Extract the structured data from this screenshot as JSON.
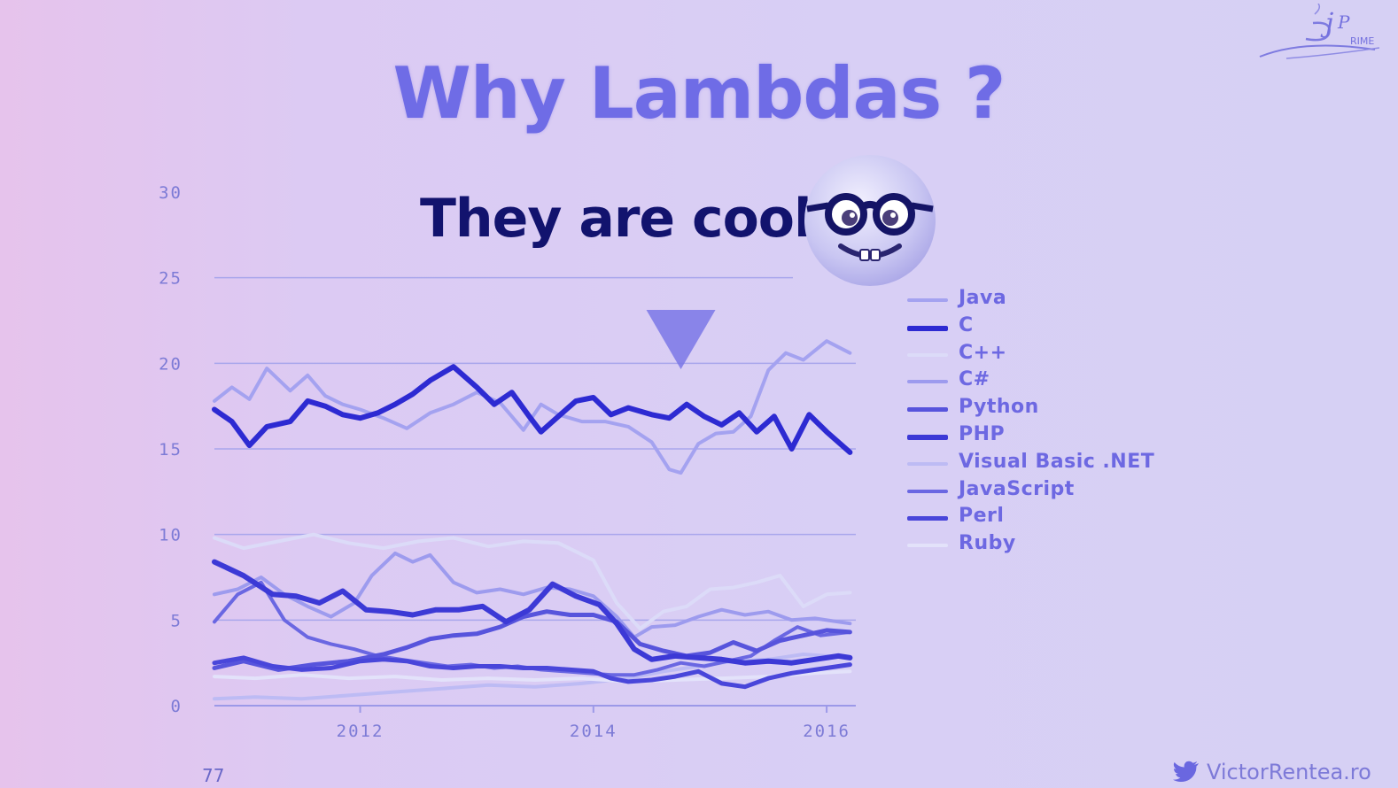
{
  "slide": {
    "title": "Why Lambdas ?",
    "subtitle": "They are cool",
    "page_number": "77",
    "credit": "VictorRentea.ro",
    "logo_icon": "j-prime-logo",
    "emoji_icon": "nerd-face-icon",
    "bird_icon": "twitter-bird-icon"
  },
  "chart_data": {
    "type": "line",
    "title": "",
    "xlabel": "",
    "ylabel": "",
    "x_range": [
      2010.75,
      2016.25
    ],
    "ylim": [
      0,
      30
    ],
    "y_ticks": [
      0,
      5,
      10,
      15,
      20,
      25,
      30
    ],
    "x_ticks": [
      2012,
      2014,
      2016
    ],
    "grid": true,
    "legend_position": "right",
    "marker": {
      "shape": "down-triangle",
      "x": 2014.75,
      "color": "#7a77e6"
    },
    "series": [
      {
        "name": "Java",
        "color": "#a4a2f0",
        "width": 4,
        "x": [
          2010.75,
          2010.9,
          2011.05,
          2011.2,
          2011.4,
          2011.55,
          2011.7,
          2011.85,
          2012.0,
          2012.2,
          2012.4,
          2012.6,
          2012.8,
          2013.0,
          2013.2,
          2013.4,
          2013.55,
          2013.7,
          2013.9,
          2014.1,
          2014.3,
          2014.5,
          2014.65,
          2014.75,
          2014.9,
          2015.05,
          2015.2,
          2015.35,
          2015.5,
          2015.65,
          2015.8,
          2016.0,
          2016.2
        ],
        "y": [
          17.8,
          18.6,
          17.9,
          19.7,
          18.4,
          19.3,
          18.1,
          17.6,
          17.3,
          16.8,
          16.2,
          17.1,
          17.6,
          18.3,
          17.7,
          16.1,
          17.6,
          17.0,
          16.6,
          16.6,
          16.3,
          15.4,
          13.8,
          13.6,
          15.3,
          15.9,
          16.0,
          16.9,
          19.6,
          20.6,
          20.2,
          21.3,
          20.6
        ]
      },
      {
        "name": "C",
        "color": "#2d2ad2",
        "width": 6,
        "x": [
          2010.75,
          2010.9,
          2011.05,
          2011.2,
          2011.4,
          2011.55,
          2011.7,
          2011.85,
          2012.0,
          2012.15,
          2012.3,
          2012.45,
          2012.6,
          2012.8,
          2013.0,
          2013.15,
          2013.3,
          2013.45,
          2013.55,
          2013.7,
          2013.85,
          2014.0,
          2014.15,
          2014.3,
          2014.5,
          2014.65,
          2014.8,
          2014.95,
          2015.1,
          2015.25,
          2015.4,
          2015.55,
          2015.7,
          2015.85,
          2016.0,
          2016.2
        ],
        "y": [
          17.3,
          16.6,
          15.2,
          16.3,
          16.6,
          17.8,
          17.5,
          17.0,
          16.8,
          17.1,
          17.6,
          18.2,
          19.0,
          19.8,
          18.6,
          17.6,
          18.3,
          16.9,
          16.0,
          16.9,
          17.8,
          18.0,
          17.0,
          17.4,
          17.0,
          16.8,
          17.6,
          16.9,
          16.4,
          17.1,
          16.0,
          16.9,
          15.0,
          17.0,
          16.0,
          14.8
        ]
      },
      {
        "name": "C++",
        "color": "#dcdbf8",
        "width": 4,
        "x": [
          2010.75,
          2011.0,
          2011.3,
          2011.6,
          2011.9,
          2012.2,
          2012.5,
          2012.8,
          2013.1,
          2013.4,
          2013.7,
          2014.0,
          2014.2,
          2014.4,
          2014.6,
          2014.8,
          2015.0,
          2015.2,
          2015.4,
          2015.6,
          2015.8,
          2016.0,
          2016.2
        ],
        "y": [
          9.8,
          9.2,
          9.6,
          10.0,
          9.5,
          9.2,
          9.6,
          9.8,
          9.3,
          9.6,
          9.5,
          8.5,
          6.0,
          4.5,
          5.5,
          5.8,
          6.8,
          6.9,
          7.2,
          7.6,
          5.8,
          6.5,
          6.6
        ]
      },
      {
        "name": "C#",
        "color": "#9d9bee",
        "width": 4,
        "x": [
          2010.75,
          2010.95,
          2011.15,
          2011.35,
          2011.55,
          2011.75,
          2011.95,
          2012.1,
          2012.3,
          2012.45,
          2012.6,
          2012.8,
          2013.0,
          2013.2,
          2013.4,
          2013.6,
          2013.8,
          2014.0,
          2014.2,
          2014.35,
          2014.5,
          2014.7,
          2014.9,
          2015.1,
          2015.3,
          2015.5,
          2015.7,
          2015.9,
          2016.1,
          2016.2
        ],
        "y": [
          6.5,
          6.8,
          7.5,
          6.5,
          5.8,
          5.2,
          6.0,
          7.6,
          8.9,
          8.4,
          8.8,
          7.2,
          6.6,
          6.8,
          6.5,
          6.9,
          6.8,
          6.4,
          5.2,
          4.0,
          4.6,
          4.7,
          5.2,
          5.6,
          5.3,
          5.5,
          5.0,
          5.1,
          4.9,
          4.8
        ]
      },
      {
        "name": "Python",
        "color": "#5754dc",
        "width": 5,
        "x": [
          2010.75,
          2011.0,
          2011.3,
          2011.6,
          2011.9,
          2012.2,
          2012.4,
          2012.6,
          2012.8,
          2013.0,
          2013.2,
          2013.4,
          2013.6,
          2013.8,
          2014.0,
          2014.2,
          2014.4,
          2014.6,
          2014.8,
          2015.0,
          2015.2,
          2015.4,
          2015.6,
          2015.8,
          2016.0,
          2016.2
        ],
        "y": [
          2.2,
          2.6,
          2.1,
          2.4,
          2.6,
          3.0,
          3.4,
          3.9,
          4.1,
          4.2,
          4.6,
          5.2,
          5.5,
          5.3,
          5.3,
          4.9,
          3.6,
          3.2,
          2.9,
          3.1,
          3.7,
          3.2,
          3.8,
          4.1,
          4.4,
          4.3
        ]
      },
      {
        "name": "PHP",
        "color": "#3c39d6",
        "width": 6,
        "x": [
          2010.75,
          2011.0,
          2011.25,
          2011.45,
          2011.65,
          2011.85,
          2012.05,
          2012.25,
          2012.45,
          2012.65,
          2012.85,
          2013.05,
          2013.25,
          2013.45,
          2013.65,
          2013.85,
          2014.05,
          2014.2,
          2014.35,
          2014.5,
          2014.7,
          2014.9,
          2015.1,
          2015.3,
          2015.5,
          2015.7,
          2015.9,
          2016.1,
          2016.2
        ],
        "y": [
          8.4,
          7.6,
          6.5,
          6.4,
          6.0,
          6.7,
          5.6,
          5.5,
          5.3,
          5.6,
          5.6,
          5.8,
          4.9,
          5.6,
          7.1,
          6.4,
          5.9,
          4.8,
          3.3,
          2.7,
          2.9,
          2.8,
          2.7,
          2.5,
          2.6,
          2.5,
          2.7,
          2.9,
          2.8
        ]
      },
      {
        "name": "Visual Basic .NET",
        "color": "#bdbbf4",
        "width": 4,
        "x": [
          2010.75,
          2011.1,
          2011.5,
          2011.9,
          2012.3,
          2012.7,
          2013.1,
          2013.5,
          2013.9,
          2014.3,
          2014.6,
          2014.9,
          2015.2,
          2015.5,
          2015.8,
          2016.2
        ],
        "y": [
          0.4,
          0.5,
          0.4,
          0.6,
          0.8,
          1.0,
          1.2,
          1.1,
          1.3,
          1.6,
          2.0,
          2.3,
          2.6,
          2.7,
          3.0,
          2.8
        ]
      },
      {
        "name": "JavaScript",
        "color": "#6a67e2",
        "width": 4,
        "x": [
          2010.75,
          2010.95,
          2011.15,
          2011.35,
          2011.55,
          2011.75,
          2011.95,
          2012.15,
          2012.35,
          2012.55,
          2012.75,
          2012.95,
          2013.15,
          2013.35,
          2013.55,
          2013.75,
          2013.95,
          2014.15,
          2014.35,
          2014.55,
          2014.75,
          2014.95,
          2015.15,
          2015.35,
          2015.55,
          2015.75,
          2015.95,
          2016.2
        ],
        "y": [
          4.9,
          6.5,
          7.2,
          5.0,
          4.0,
          3.6,
          3.3,
          2.9,
          2.7,
          2.5,
          2.3,
          2.4,
          2.2,
          2.3,
          2.1,
          2.0,
          1.9,
          1.8,
          1.8,
          2.1,
          2.5,
          2.3,
          2.6,
          2.9,
          3.8,
          4.6,
          4.1,
          4.3
        ]
      },
      {
        "name": "Perl",
        "color": "#4946da",
        "width": 5,
        "x": [
          2010.75,
          2011.0,
          2011.25,
          2011.5,
          2011.75,
          2012.0,
          2012.2,
          2012.4,
          2012.6,
          2012.8,
          2013.0,
          2013.2,
          2013.4,
          2013.6,
          2013.8,
          2014.0,
          2014.15,
          2014.3,
          2014.5,
          2014.7,
          2014.9,
          2015.1,
          2015.3,
          2015.5,
          2015.7,
          2015.9,
          2016.2
        ],
        "y": [
          2.5,
          2.8,
          2.3,
          2.1,
          2.2,
          2.6,
          2.7,
          2.6,
          2.3,
          2.2,
          2.3,
          2.3,
          2.2,
          2.2,
          2.1,
          2.0,
          1.6,
          1.4,
          1.5,
          1.7,
          2.0,
          1.3,
          1.1,
          1.6,
          1.9,
          2.1,
          2.4
        ]
      },
      {
        "name": "Ruby",
        "color": "#e3e2fa",
        "width": 4,
        "x": [
          2010.75,
          2011.1,
          2011.5,
          2011.9,
          2012.3,
          2012.7,
          2013.1,
          2013.5,
          2013.9,
          2014.3,
          2014.7,
          2015.1,
          2015.5,
          2015.9,
          2016.2
        ],
        "y": [
          1.7,
          1.6,
          1.8,
          1.6,
          1.7,
          1.5,
          1.6,
          1.5,
          1.6,
          1.4,
          1.5,
          1.6,
          1.7,
          1.9,
          2.0
        ]
      }
    ]
  }
}
